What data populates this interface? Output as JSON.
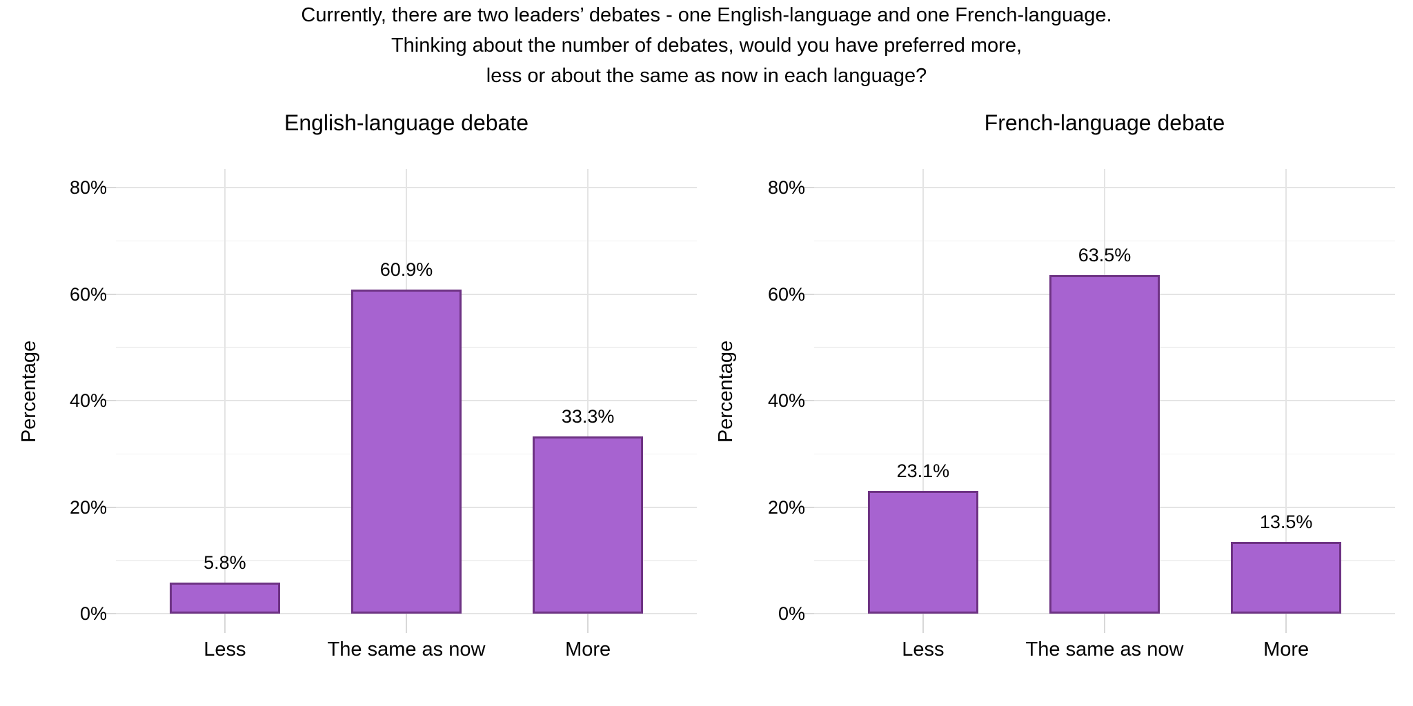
{
  "title": {
    "lines": [
      "Currently, there are two leaders’ debates - one English-language and one French-language.",
      "Thinking about the number of debates, would you have preferred more,",
      "less or about the same as now in each language?"
    ]
  },
  "chart_data": [
    {
      "type": "bar",
      "title": "English-language debate",
      "categories": [
        "Less",
        "The same as now",
        "More"
      ],
      "values": [
        5.8,
        60.9,
        33.3
      ],
      "value_labels": [
        "5.8%",
        "60.9%",
        "33.3%"
      ],
      "xlabel": "",
      "ylabel": "Percentage",
      "ylim": [
        0,
        84
      ],
      "yticks": [
        0,
        20,
        40,
        60,
        80
      ],
      "ytick_labels": [
        "0%",
        "20%",
        "40%",
        "60%",
        "80%"
      ],
      "yticks_minor": [
        10,
        30,
        50,
        70
      ],
      "grid": "major and minor, light gray on white",
      "legend": "none"
    },
    {
      "type": "bar",
      "title": "French-language debate",
      "categories": [
        "Less",
        "The same as now",
        "More"
      ],
      "values": [
        23.1,
        63.5,
        13.5
      ],
      "value_labels": [
        "23.1%",
        "63.5%",
        "13.5%"
      ],
      "xlabel": "",
      "ylabel": "Percentage",
      "ylim": [
        0,
        84
      ],
      "yticks": [
        0,
        20,
        40,
        60,
        80
      ],
      "ytick_labels": [
        "0%",
        "20%",
        "40%",
        "60%",
        "80%"
      ],
      "yticks_minor": [
        10,
        30,
        50,
        70
      ],
      "grid": "major and minor, light gray on white",
      "legend": "none"
    }
  ],
  "colors": {
    "background": "#FFFFFF",
    "bar_fill": "#A763D0",
    "bar_stroke": "#6E3384",
    "grid_major": "#E4E4E4",
    "grid_minor": "#F1F1F1",
    "axis_tick": "#D8D8D8",
    "text": "#000000"
  }
}
